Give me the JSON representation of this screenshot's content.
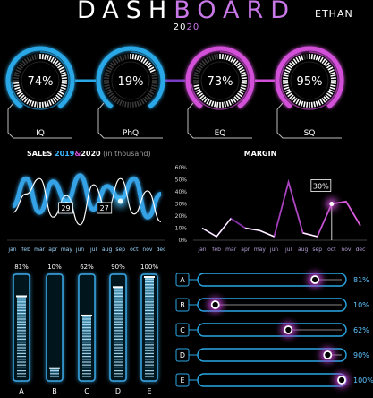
{
  "header": {
    "title_part1": "DASH",
    "title_part2": "BOARD",
    "year_prefix": "20",
    "year_suffix": "20",
    "user_name": "ETHAN"
  },
  "colors": {
    "blue": "#2aa7e6",
    "blue_glow": "#53c6ff",
    "pink": "#d24fd8",
    "purple": "#8a2bbf"
  },
  "gauges": [
    {
      "label": "IQ",
      "value_text": "74%",
      "percent": 74,
      "color": "blue"
    },
    {
      "label": "PhQ",
      "value_text": "19%",
      "percent": 19,
      "color": "blue"
    },
    {
      "label": "EQ",
      "value_text": "73%",
      "percent": 73,
      "color": "pink"
    },
    {
      "label": "SQ",
      "value_text": "95%",
      "percent": 95,
      "color": "pink"
    }
  ],
  "sales": {
    "title_prefix": "SALES ",
    "year_a": "2019",
    "separator": "&",
    "year_b": "2020",
    "unit": " (in thousand)",
    "highlight_a": "29",
    "highlight_b": "27"
  },
  "margin": {
    "title": "MARGIN",
    "callout": "30%"
  },
  "bars_vertical": [
    {
      "label": "A",
      "value_text": "81%",
      "value": 81
    },
    {
      "label": "B",
      "value_text": "10%",
      "value": 10
    },
    {
      "label": "C",
      "value_text": "62%",
      "value": 62
    },
    {
      "label": "D",
      "value_text": "90%",
      "value": 90
    },
    {
      "label": "E",
      "value_text": "100%",
      "value": 100
    }
  ],
  "sliders": [
    {
      "label": "A",
      "value_text": "81%",
      "value": 81
    },
    {
      "label": "B",
      "value_text": "10%",
      "value": 10
    },
    {
      "label": "C",
      "value_text": "62%",
      "value": 62
    },
    {
      "label": "D",
      "value_text": "90%",
      "value": 90
    },
    {
      "label": "E",
      "value_text": "100%",
      "value": 100
    }
  ],
  "chart_data": [
    {
      "type": "line",
      "title": "SALES 2019&2020 (in thousand)",
      "categories": [
        "jan",
        "feb",
        "mar",
        "apr",
        "may",
        "jun",
        "jul",
        "aug",
        "sep",
        "oct",
        "nov",
        "dec"
      ],
      "series": [
        {
          "name": "2019",
          "values": [
            22,
            40,
            18,
            38,
            25,
            42,
            20,
            35,
            27,
            40,
            15,
            30
          ]
        },
        {
          "name": "2020",
          "values": [
            18,
            30,
            40,
            15,
            29,
            10,
            36,
            20,
            40,
            17,
            32,
            12
          ]
        }
      ],
      "ylim": [
        0,
        50
      ]
    },
    {
      "type": "line",
      "title": "MARGIN",
      "categories": [
        "jan",
        "feb",
        "mar",
        "apr",
        "may",
        "jun",
        "jul",
        "aug",
        "sep",
        "oct",
        "nov",
        "dec"
      ],
      "series": [
        {
          "values": [
            10,
            3,
            18,
            10,
            8,
            3,
            48,
            6,
            3,
            30,
            32,
            12
          ]
        }
      ],
      "ylim": [
        0,
        60
      ],
      "yticks": [
        "0%",
        "10%",
        "20%",
        "30%",
        "40%",
        "50%",
        "60%"
      ]
    }
  ]
}
